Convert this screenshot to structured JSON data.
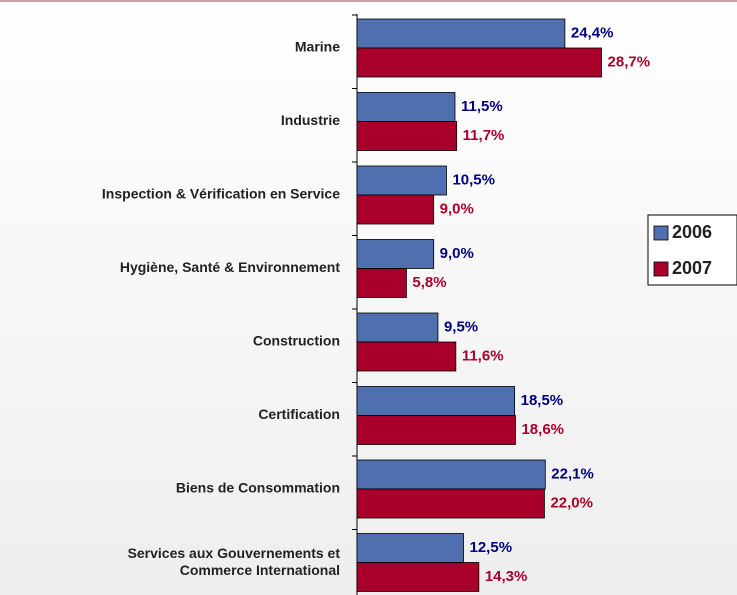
{
  "chart_data": {
    "type": "bar",
    "orientation": "horizontal",
    "categories": [
      "Marine",
      "Industrie",
      "Inspection & Vérification en Service",
      "Hygiène, Santé & Environnement",
      "Construction",
      "Certification",
      "Biens de Consommation",
      "Services aux Gouvernements et\nCommerce International"
    ],
    "series": [
      {
        "name": "2006",
        "color": "#4f6fae",
        "label_color": "#000080",
        "values": [
          24.4,
          11.5,
          10.5,
          9.0,
          9.5,
          18.5,
          22.1,
          12.5
        ],
        "value_labels": [
          "24,4%",
          "11,5%",
          "10,5%",
          "9,0%",
          "9,5%",
          "18,5%",
          "22,1%",
          "12,5%"
        ]
      },
      {
        "name": "2007",
        "color": "#a8002a",
        "label_color": "#a8002a",
        "values": [
          28.7,
          11.7,
          9.0,
          5.8,
          11.6,
          18.6,
          22.0,
          14.3
        ],
        "value_labels": [
          "28,7%",
          "11,7%",
          "9,0%",
          "5,8%",
          "11,6%",
          "18,6%",
          "22,0%",
          "14,3%"
        ]
      }
    ],
    "legend": "right"
  }
}
